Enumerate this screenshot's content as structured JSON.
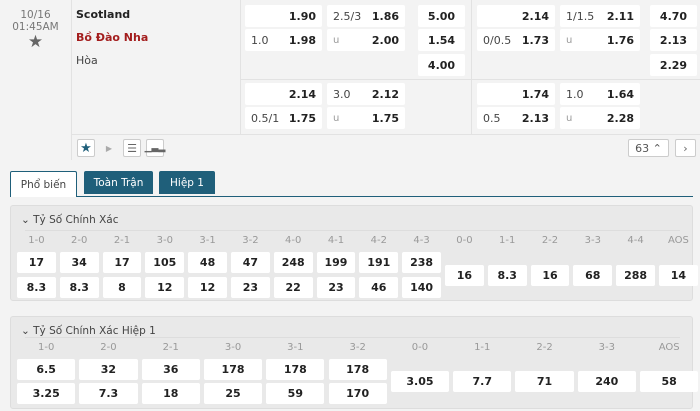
{
  "match": {
    "date": "10/16",
    "time": "01:45AM",
    "home": "Scotland",
    "away": "Bồ Đào Nha",
    "draw": "Hòa"
  },
  "odds": {
    "ft": [
      [
        {
          "line": "",
          "odds": "1.90"
        },
        {
          "line": "2.5/3",
          "odds": "1.86"
        },
        {
          "odds": "5.00"
        }
      ],
      [
        {
          "line": "1.0",
          "odds": "1.98"
        },
        {
          "line": "u",
          "odds": "2.00"
        },
        {
          "odds": "1.54"
        }
      ],
      [
        null,
        null,
        {
          "odds": "4.00"
        }
      ],
      [
        {
          "line": "",
          "odds": "2.14"
        },
        {
          "line": "3.0",
          "odds": "2.12"
        },
        null
      ],
      [
        {
          "line": "0.5/1",
          "odds": "1.75"
        },
        {
          "line": "u",
          "odds": "1.75"
        },
        null
      ]
    ],
    "h1": [
      [
        {
          "line": "",
          "odds": "2.14"
        },
        {
          "line": "1/1.5",
          "odds": "2.11"
        },
        {
          "odds": "4.70"
        }
      ],
      [
        {
          "line": "0/0.5",
          "odds": "1.73"
        },
        {
          "line": "u",
          "odds": "1.76"
        },
        {
          "odds": "2.13"
        }
      ],
      [
        null,
        null,
        {
          "odds": "2.29"
        }
      ],
      [
        {
          "line": "",
          "odds": "1.74"
        },
        {
          "line": "1.0",
          "odds": "1.64"
        },
        null
      ],
      [
        {
          "line": "0.5",
          "odds": "2.13"
        },
        {
          "line": "u",
          "odds": "2.28"
        },
        null
      ]
    ]
  },
  "toolbar": {
    "count": "63"
  },
  "tabs": [
    "Phổ biến",
    "Toàn Trận",
    "Hiệp 1"
  ],
  "sections": [
    {
      "title": "Tỷ Số Chính Xác",
      "labels": [
        "1-0",
        "2-0",
        "2-1",
        "3-0",
        "3-1",
        "3-2",
        "4-0",
        "4-1",
        "4-2",
        "4-3",
        "0-0",
        "1-1",
        "2-2",
        "3-3",
        "4-4",
        "AOS"
      ],
      "home": [
        "17",
        "34",
        "17",
        "105",
        "48",
        "47",
        "248",
        "199",
        "191",
        "238"
      ],
      "away": [
        "8.3",
        "8.3",
        "8",
        "12",
        "12",
        "23",
        "22",
        "23",
        "46",
        "140"
      ],
      "draws": [
        "16",
        "8.3",
        "16",
        "68",
        "288",
        "14"
      ]
    },
    {
      "title": "Tỷ Số Chính Xác Hiệp 1",
      "labels": [
        "1-0",
        "2-0",
        "2-1",
        "3-0",
        "3-1",
        "3-2",
        "0-0",
        "1-1",
        "2-2",
        "3-3",
        "AOS"
      ],
      "home": [
        "6.5",
        "32",
        "36",
        "178",
        "178",
        "178"
      ],
      "away": [
        "3.25",
        "7.3",
        "18",
        "25",
        "59",
        "170"
      ],
      "draws": [
        "3.05",
        "7.7",
        "71",
        "240",
        "58"
      ]
    }
  ]
}
